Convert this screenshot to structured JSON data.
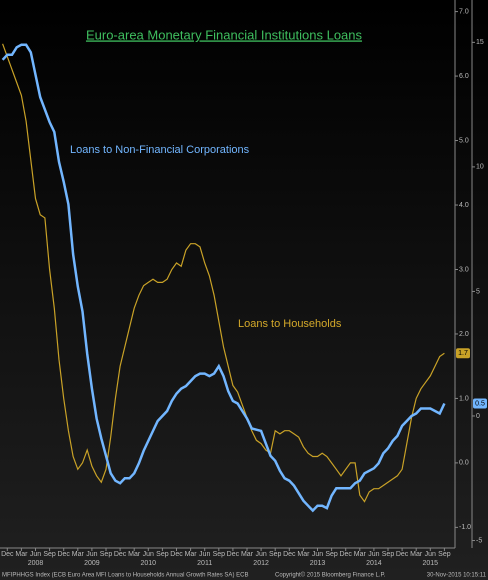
{
  "chart_data": {
    "type": "line",
    "title": "Euro-area Monetary Financial Institutions Loans",
    "annotations": [
      "Loans to Non-Financial Corporations",
      "Loans to Households"
    ],
    "footer": [
      "MFIPHHGS Index (ECB Euro Area MFI Loans to Households Annual Growth Rates SA) ECB",
      "Copyright© 2015 Bloomberg Finance L.P.",
      "30-Nov-2015 10:15:11"
    ],
    "x": [
      "2007-11",
      "2007-12",
      "2008-01",
      "2008-02",
      "2008-03",
      "2008-04",
      "2008-05",
      "2008-06",
      "2008-07",
      "2008-08",
      "2008-09",
      "2008-10",
      "2008-11",
      "2008-12",
      "2009-01",
      "2009-02",
      "2009-03",
      "2009-04",
      "2009-05",
      "2009-06",
      "2009-07",
      "2009-08",
      "2009-09",
      "2009-10",
      "2009-11",
      "2009-12",
      "2010-01",
      "2010-02",
      "2010-03",
      "2010-04",
      "2010-05",
      "2010-06",
      "2010-07",
      "2010-08",
      "2010-09",
      "2010-10",
      "2010-11",
      "2010-12",
      "2011-01",
      "2011-02",
      "2011-03",
      "2011-04",
      "2011-05",
      "2011-06",
      "2011-07",
      "2011-08",
      "2011-09",
      "2011-10",
      "2011-11",
      "2011-12",
      "2012-01",
      "2012-02",
      "2012-03",
      "2012-04",
      "2012-05",
      "2012-06",
      "2012-07",
      "2012-08",
      "2012-09",
      "2012-10",
      "2012-11",
      "2012-12",
      "2013-01",
      "2013-02",
      "2013-03",
      "2013-04",
      "2013-05",
      "2013-06",
      "2013-07",
      "2013-08",
      "2013-09",
      "2013-10",
      "2013-11",
      "2013-12",
      "2014-01",
      "2014-02",
      "2014-03",
      "2014-04",
      "2014-05",
      "2014-06",
      "2014-07",
      "2014-08",
      "2014-09",
      "2014-10",
      "2014-11",
      "2014-12",
      "2015-01",
      "2015-02",
      "2015-03",
      "2015-04",
      "2015-05",
      "2015-06",
      "2015-07",
      "2015-08",
      "2015-09"
    ],
    "xticks": [
      {
        "value": "2007-12",
        "label": "Dec"
      },
      {
        "value": "2008-03",
        "label": "Mar"
      },
      {
        "value": "2008-06",
        "label": "Jun"
      },
      {
        "value": "2008-09",
        "label": "Sep"
      },
      {
        "value": "2008-12",
        "label": "Dec"
      },
      {
        "value": "2009-03",
        "label": "Mar"
      },
      {
        "value": "2009-06",
        "label": "Jun"
      },
      {
        "value": "2009-09",
        "label": "Sep"
      },
      {
        "value": "2009-12",
        "label": "Dec"
      },
      {
        "value": "2010-03",
        "label": "Mar"
      },
      {
        "value": "2010-06",
        "label": "Jun"
      },
      {
        "value": "2010-09",
        "label": "Sep"
      },
      {
        "value": "2010-12",
        "label": "Dec"
      },
      {
        "value": "2011-03",
        "label": "Mar"
      },
      {
        "value": "2011-06",
        "label": "Jun"
      },
      {
        "value": "2011-09",
        "label": "Sep"
      },
      {
        "value": "2011-12",
        "label": "Dec"
      },
      {
        "value": "2012-03",
        "label": "Mar"
      },
      {
        "value": "2012-06",
        "label": "Jun"
      },
      {
        "value": "2012-09",
        "label": "Sep"
      },
      {
        "value": "2012-12",
        "label": "Dec"
      },
      {
        "value": "2013-03",
        "label": "Mar"
      },
      {
        "value": "2013-06",
        "label": "Jun"
      },
      {
        "value": "2013-09",
        "label": "Sep"
      },
      {
        "value": "2013-12",
        "label": "Dec"
      },
      {
        "value": "2014-03",
        "label": "Mar"
      },
      {
        "value": "2014-06",
        "label": "Jun"
      },
      {
        "value": "2014-09",
        "label": "Sep"
      },
      {
        "value": "2014-12",
        "label": "Dec"
      },
      {
        "value": "2015-03",
        "label": "Mar"
      },
      {
        "value": "2015-06",
        "label": "Jun"
      },
      {
        "value": "2015-09",
        "label": "Sep"
      }
    ],
    "year_labels": [
      {
        "value": "2008-06",
        "label": "2008"
      },
      {
        "value": "2009-06",
        "label": "2009"
      },
      {
        "value": "2010-06",
        "label": "2010"
      },
      {
        "value": "2011-06",
        "label": "2011"
      },
      {
        "value": "2012-06",
        "label": "2012"
      },
      {
        "value": "2013-06",
        "label": "2013"
      },
      {
        "value": "2014-06",
        "label": "2014"
      },
      {
        "value": "2015-06",
        "label": "2015"
      }
    ],
    "ylim": [
      -1.32,
      7.18
    ],
    "yticks": [
      {
        "value": 7,
        "label": "7.0"
      },
      {
        "value": 6,
        "label": "6.0"
      },
      {
        "value": 5,
        "label": "5.0"
      },
      {
        "value": 4,
        "label": "4.0"
      },
      {
        "value": 3,
        "label": "3.0"
      },
      {
        "value": 2,
        "label": "2.0"
      },
      {
        "value": 1,
        "label": "1.0"
      },
      {
        "value": 0,
        "label": "0.0"
      },
      {
        "value": -1,
        "label": "-1.0"
      }
    ],
    "y2lim": [
      -5.3,
      16.7
    ],
    "y2ticks": [
      15,
      10,
      5,
      0,
      -5
    ],
    "series": [
      {
        "name": "Loans to Households",
        "color": "#c9a227",
        "end_label": "1.7",
        "values": [
          6.5,
          6.3,
          6.1,
          5.9,
          5.7,
          5.3,
          4.7,
          4.1,
          3.85,
          3.8,
          3.0,
          2.4,
          1.6,
          1.0,
          0.5,
          0.1,
          -0.1,
          0.0,
          0.2,
          -0.05,
          -0.2,
          -0.3,
          -0.1,
          0.4,
          1.0,
          1.5,
          1.8,
          2.1,
          2.4,
          2.6,
          2.75,
          2.8,
          2.85,
          2.8,
          2.8,
          2.85,
          3.0,
          3.1,
          3.05,
          3.3,
          3.4,
          3.4,
          3.35,
          3.1,
          2.9,
          2.6,
          2.2,
          1.8,
          1.5,
          1.2,
          1.1,
          0.9,
          0.7,
          0.5,
          0.35,
          0.3,
          0.2,
          0.15,
          0.5,
          0.45,
          0.5,
          0.5,
          0.45,
          0.4,
          0.25,
          0.15,
          0.1,
          0.1,
          0.15,
          0.1,
          0.0,
          -0.1,
          -0.2,
          -0.1,
          0.0,
          0.0,
          -0.5,
          -0.6,
          -0.45,
          -0.4,
          -0.4,
          -0.35,
          -0.3,
          -0.25,
          -0.2,
          -0.1,
          0.3,
          0.7,
          1.0,
          1.15,
          1.25,
          1.35,
          1.5,
          1.65,
          1.7
        ]
      },
      {
        "name": "Loans to Non-Financial Corporations",
        "color": "#72b6ff",
        "axis": "y2",
        "end_label": "0.5",
        "values": [
          14.3,
          14.5,
          14.5,
          14.8,
          14.9,
          14.9,
          14.6,
          13.7,
          12.8,
          12.3,
          11.8,
          11.4,
          10.2,
          9.4,
          8.5,
          6.5,
          5.2,
          4.2,
          2.5,
          1.1,
          -0.1,
          -0.9,
          -1.6,
          -2.3,
          -2.6,
          -2.7,
          -2.5,
          -2.5,
          -2.3,
          -1.9,
          -1.4,
          -1.0,
          -0.6,
          -0.2,
          0.0,
          0.2,
          0.6,
          0.9,
          1.1,
          1.2,
          1.4,
          1.6,
          1.7,
          1.7,
          1.6,
          1.7,
          2.0,
          1.6,
          1.0,
          0.6,
          0.5,
          0.2,
          -0.1,
          -0.5,
          -0.55,
          -0.6,
          -1.1,
          -1.6,
          -1.8,
          -2.2,
          -2.5,
          -2.6,
          -2.8,
          -3.1,
          -3.4,
          -3.6,
          -3.8,
          -3.6,
          -3.6,
          -3.7,
          -3.2,
          -2.9,
          -2.9,
          -2.9,
          -2.9,
          -2.7,
          -2.6,
          -2.3,
          -2.2,
          -2.1,
          -1.9,
          -1.5,
          -1.3,
          -1.0,
          -0.8,
          -0.4,
          -0.2,
          0.0,
          0.1,
          0.3,
          0.3,
          0.3,
          0.2,
          0.1,
          0.5
        ]
      }
    ]
  }
}
